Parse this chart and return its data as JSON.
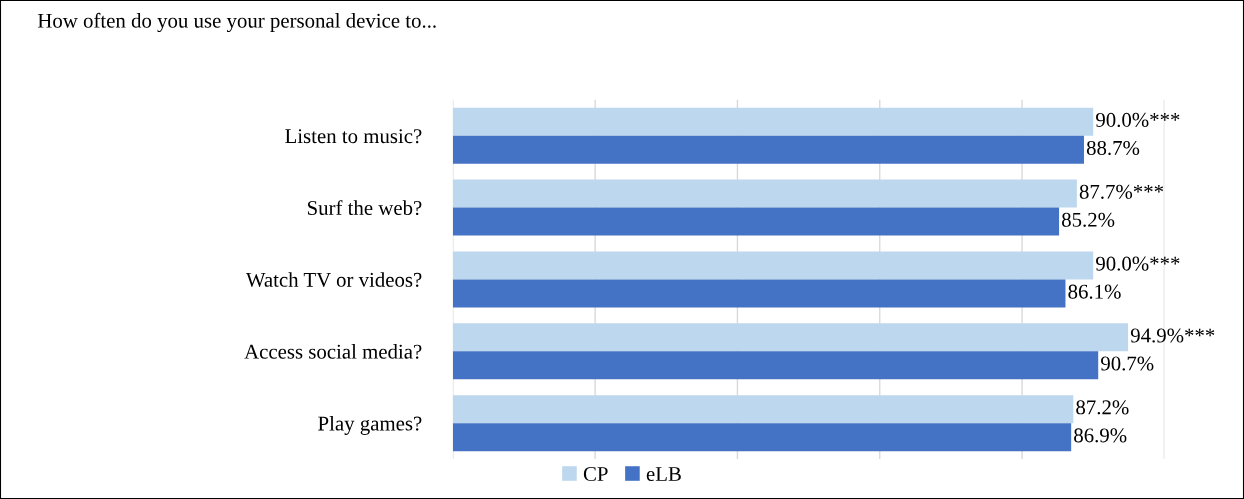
{
  "chart_data": {
    "type": "bar",
    "orientation": "horizontal",
    "title": "How often do you use your personal device to...",
    "categories": [
      "Listen to music?",
      "Surf the web?",
      "Watch TV or videos?",
      "Access social media?",
      "Play games?"
    ],
    "series": [
      {
        "name": "CP",
        "color": "#bdd7ee",
        "values": [
          90.0,
          87.7,
          90.0,
          94.9,
          87.2
        ],
        "value_labels": [
          "90.0%***",
          "87.7%***",
          "90.0%***",
          "94.9%***",
          "87.2%"
        ]
      },
      {
        "name": "eLB",
        "color": "#4472c4",
        "values": [
          88.7,
          85.2,
          86.1,
          90.7,
          86.9
        ],
        "value_labels": [
          "88.7%",
          "85.2%",
          "86.1%",
          "90.7%",
          "86.9%"
        ]
      }
    ],
    "xlim": [
      0,
      100
    ],
    "xticks": [
      {
        "value": 0,
        "label": null
      },
      {
        "value": 20,
        "label": null
      },
      {
        "value": 40,
        "label": null
      },
      {
        "value": 60,
        "label": null
      },
      {
        "value": 80,
        "label": null
      },
      {
        "value": 100,
        "label": null
      }
    ],
    "tick_labels": "y",
    "grid": "x",
    "legend": "bottom"
  }
}
